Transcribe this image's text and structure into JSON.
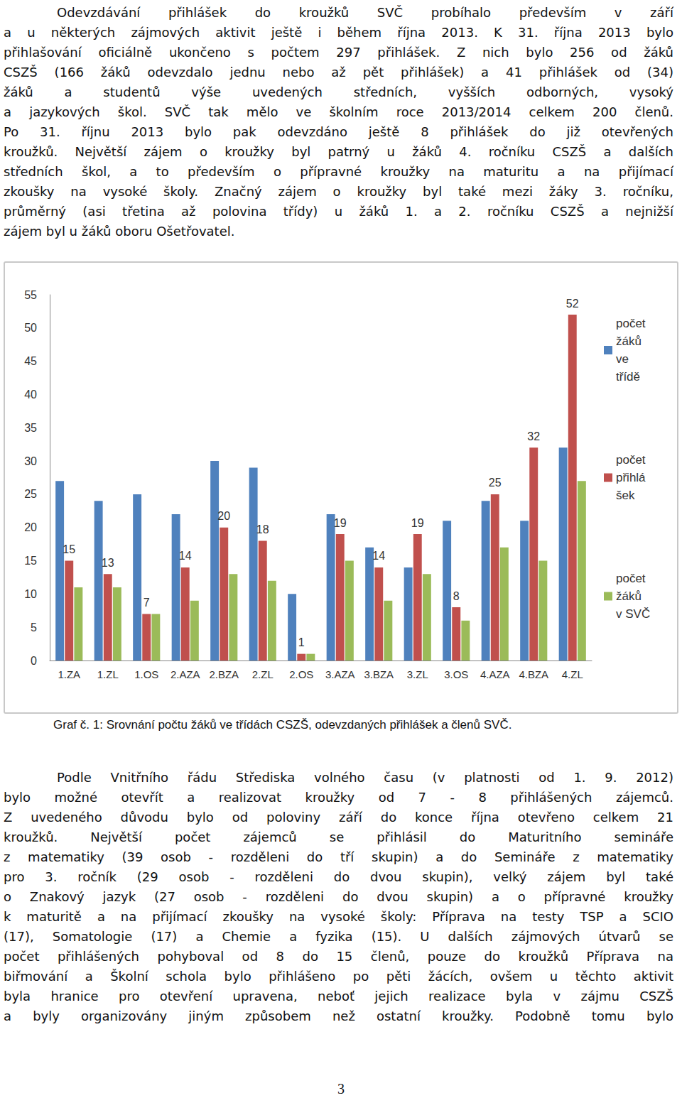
{
  "paragraph_1": [
    "Odevzdávání přihlášek do kroužků SVČ probíhalo především v září",
    "a u některých zájmových aktivit ještě i během října 2013. K 31. října 2013 bylo",
    "přihlašování oficiálně ukončeno s počtem 297 přihlášek. Z nich bylo 256 od žáků",
    "CSZŠ (166 žáků odevzdalo jednu nebo až pět přihlášek) a 41 přihlášek od (34)",
    "žáků a studentů výše uvedených středních, vyšších odborných, vysoký",
    "a jazykových škol. SVČ tak mělo ve školním roce 2013/2014 celkem 200 členů.",
    "Po 31. říjnu 2013 bylo pak odevzdáno ještě 8 přihlášek do již otevřených",
    "kroužků. Největší zájem o kroužky byl patrný u žáků 4. ročníku CSZŠ a dalších",
    "středních škol, a to především o přípravné kroužky na maturitu a na přijímací",
    "zkoušky na vysoké školy. Značný zájem o kroužky byl také mezi žáky 3. ročníku,",
    "průměrný (asi třetina až polovina třídy) u žáků 1. a 2. ročníku CSZŠ a nejnižší",
    "zájem byl u žáků oboru Ošetřovatel."
  ],
  "chart_data": {
    "type": "bar",
    "categories": [
      "1.ZA",
      "1.ZL",
      "1.OS",
      "2.AZA",
      "2.BZA",
      "2.ZL",
      "2.OS",
      "3.AZA",
      "3.BZA",
      "3.ZL",
      "3.OS",
      "4.AZA",
      "4.BZA",
      "4.ZL"
    ],
    "series": [
      {
        "name": "počet žáků ve třídě",
        "color": "#4f81bd",
        "values": [
          27,
          24,
          25,
          22,
          30,
          29,
          10,
          22,
          17,
          14,
          21,
          24,
          21,
          32
        ]
      },
      {
        "name": "počet přihlášek",
        "color": "#c0504d",
        "data_labels": true,
        "values": [
          15,
          13,
          7,
          14,
          20,
          18,
          1,
          19,
          14,
          19,
          8,
          25,
          32,
          52
        ]
      },
      {
        "name": "počet žáků v SVČ",
        "color": "#9bbb59",
        "values": [
          11,
          11,
          7,
          9,
          13,
          12,
          1,
          15,
          9,
          13,
          6,
          17,
          15,
          27
        ]
      }
    ],
    "ylim": [
      0,
      55
    ],
    "yticks": [
      0,
      5,
      10,
      15,
      20,
      25,
      30,
      35,
      40,
      45,
      50,
      55
    ],
    "grid": false,
    "legend": "right"
  },
  "caption": "Graf č. 1: Srovnání počtu žáků ve třídách CSZŠ, odevzdaných přihlášek a členů SVČ.",
  "paragraph_2": [
    "Podle Vnitřního řádu Střediska volného času (v platnosti od 1. 9. 2012)",
    "bylo možné otevřít a realizovat kroužky od 7 - 8 přihlášených zájemců.",
    "Z uvedeného důvodu bylo od poloviny září do konce října otevřeno celkem 21",
    "kroužků. Největší počet zájemců se přihlásil do Maturitního semináře",
    "z matematiky (39 osob - rozděleni do tří skupin) a do Semináře z matematiky",
    "pro 3. ročník (29 osob - rozděleni do dvou skupin), velký zájem byl také",
    "o Znakový jazyk (27 osob - rozděleni do dvou skupin) a o přípravné kroužky",
    "k maturitě a na přijímací zkoušky na vysoké školy: Příprava na testy TSP a SCIO",
    "(17), Somatologie (17) a Chemie a fyzika (15). U dalších zájmových útvarů se",
    "počet přihlášených pohyboval od 8 do 15 členů, pouze do kroužků Příprava na",
    "biřmování a Školní schola bylo přihlášeno po pěti žácích, ovšem u těchto aktivit",
    "byla hranice pro otevření upravena, neboť jejich realizace byla v zájmu CSZŠ",
    "a byly organizovány jiným způsobem než ostatní kroužky. Podobně tomu bylo"
  ],
  "page_number": 3
}
